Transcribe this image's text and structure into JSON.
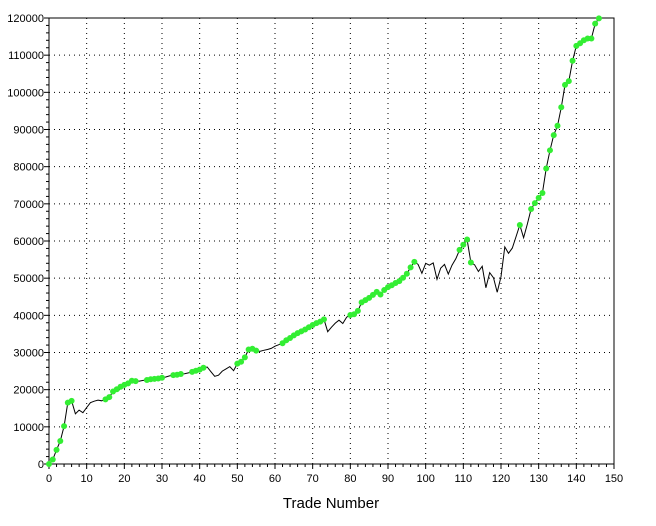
{
  "chart_data": {
    "type": "line",
    "title": "",
    "xlabel": "Trade Number",
    "ylabel": "",
    "xlim": [
      0,
      150
    ],
    "ylim": [
      0,
      120000
    ],
    "x_ticks": [
      0,
      10,
      20,
      30,
      40,
      50,
      60,
      70,
      80,
      90,
      100,
      110,
      120,
      130,
      140,
      150
    ],
    "y_ticks": [
      0,
      10000,
      20000,
      30000,
      40000,
      50000,
      60000,
      70000,
      80000,
      90000,
      100000,
      110000,
      120000
    ],
    "x_tick_labels": [
      "0",
      "10",
      "20",
      "30",
      "40",
      "50",
      "60",
      "70",
      "80",
      "90",
      "100",
      "110",
      "120",
      "130",
      "140",
      "150"
    ],
    "y_tick_labels": [
      "0",
      "10000",
      "20000",
      "30000",
      "40000",
      "50000",
      "60000",
      "70000",
      "80000",
      "90000",
      "100000",
      "110000",
      "120000"
    ],
    "grid": true,
    "line_color": "#000000",
    "marker_color": "#33ee33",
    "series": [
      {
        "x": [
          0,
          1,
          2,
          3,
          4,
          5,
          6,
          7,
          8,
          9,
          10,
          11,
          12,
          13,
          14,
          15,
          16,
          17,
          18,
          19,
          20,
          21,
          22,
          23,
          24,
          25,
          26,
          27,
          28,
          29,
          30,
          31,
          32,
          33,
          34,
          35,
          36,
          37,
          38,
          39,
          40,
          41,
          42,
          43,
          44,
          45,
          46,
          47,
          48,
          49,
          50,
          51,
          52,
          53,
          54,
          55,
          56,
          57,
          58,
          59,
          60,
          61,
          62,
          63,
          64,
          65,
          66,
          67,
          68,
          69,
          70,
          71,
          72,
          73,
          74,
          75,
          76,
          77,
          78,
          79,
          80,
          81,
          82,
          83,
          84,
          85,
          86,
          87,
          88,
          89,
          90,
          91,
          92,
          93,
          94,
          95,
          96,
          97,
          98,
          99,
          100,
          101,
          102,
          103,
          104,
          105,
          106,
          107,
          108,
          109,
          110,
          111,
          112,
          113,
          114,
          115,
          116,
          117,
          118,
          119,
          120,
          121,
          122,
          123,
          124,
          125,
          126,
          127,
          128,
          129,
          130,
          131,
          132,
          133,
          134,
          135,
          136,
          137,
          138,
          139,
          140,
          141,
          142,
          143,
          144,
          145,
          146
        ],
        "y": [
          0,
          1200,
          3800,
          6200,
          10200,
          16500,
          17000,
          13500,
          14500,
          13800,
          15200,
          16500,
          16900,
          17200,
          17000,
          17400,
          18000,
          19500,
          20100,
          20800,
          21300,
          21700,
          22400,
          22300,
          22300,
          22500,
          22600,
          22800,
          22900,
          23000,
          23200,
          23400,
          23700,
          23900,
          24000,
          24200,
          24300,
          24500,
          24800,
          25100,
          25400,
          25900,
          26100,
          24800,
          23600,
          23900,
          25000,
          25600,
          26200,
          25100,
          27000,
          27500,
          28700,
          30800,
          31000,
          30500,
          30300,
          30600,
          30800,
          31100,
          31700,
          32100,
          32500,
          33300,
          33900,
          34600,
          35200,
          35700,
          36200,
          36800,
          37400,
          37900,
          38300,
          38900,
          35600,
          36800,
          37900,
          38700,
          37800,
          39500,
          40100,
          40300,
          41200,
          43500,
          44100,
          44700,
          45500,
          46300,
          45600,
          46800,
          47600,
          48100,
          48700,
          49200,
          50100,
          51200,
          52900,
          54400,
          53700,
          51300,
          54000,
          53500,
          54100,
          49700,
          52700,
          53700,
          51100,
          53500,
          55200,
          57600,
          59000,
          60400,
          54200,
          53600,
          51800,
          53200,
          47400,
          51500,
          50100,
          46200,
          50400,
          58400,
          56700,
          58100,
          61200,
          64300,
          60900,
          64600,
          68600,
          70200,
          71600,
          72900,
          79500,
          84400,
          88500,
          91000,
          96000,
          102000,
          103000,
          108500,
          112500,
          113200,
          114000,
          114500,
          114500,
          118500,
          119900
        ],
        "marker_indices": [
          0,
          1,
          2,
          3,
          4,
          5,
          6,
          15,
          16,
          17,
          18,
          19,
          20,
          21,
          22,
          23,
          26,
          27,
          28,
          29,
          30,
          33,
          34,
          35,
          38,
          39,
          40,
          41,
          50,
          51,
          52,
          53,
          54,
          55,
          62,
          63,
          64,
          65,
          66,
          67,
          68,
          69,
          70,
          71,
          72,
          73,
          80,
          81,
          82,
          83,
          84,
          85,
          86,
          87,
          88,
          89,
          90,
          91,
          92,
          93,
          94,
          95,
          96,
          97,
          109,
          110,
          111,
          112,
          125,
          128,
          129,
          130,
          131,
          132,
          133,
          134,
          135,
          136,
          137,
          138,
          139,
          140,
          141,
          142,
          143,
          144,
          145,
          146
        ]
      }
    ]
  }
}
